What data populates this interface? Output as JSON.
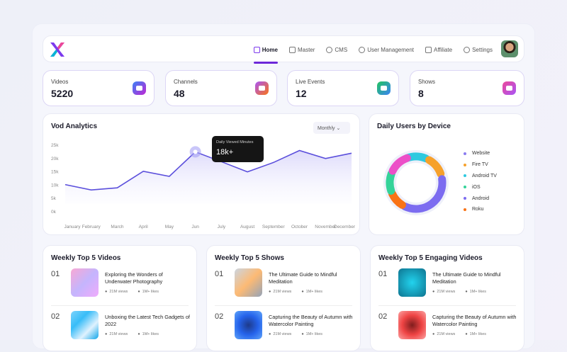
{
  "nav": {
    "items": [
      {
        "label": "Home",
        "icon": "home-icon",
        "active": true
      },
      {
        "label": "Master",
        "icon": "folder-icon"
      },
      {
        "label": "CMS",
        "icon": "cms-icon"
      },
      {
        "label": "User Management",
        "icon": "user-icon"
      },
      {
        "label": "Affiliate",
        "icon": "affiliate-icon"
      },
      {
        "label": "Settings",
        "icon": "gear-icon"
      }
    ]
  },
  "stats": [
    {
      "label": "Videos",
      "value": "5220",
      "icon": "video-icon"
    },
    {
      "label": "Channels",
      "value": "48",
      "icon": "tv-icon"
    },
    {
      "label": "Live Events",
      "value": "12",
      "icon": "live-icon"
    },
    {
      "label": "Shows",
      "value": "8",
      "icon": "show-icon"
    }
  ],
  "vod": {
    "title": "Vod Analytics",
    "period": "Monthly",
    "tooltip_label": "Daily Viewed Minutes",
    "tooltip_value": "18k+"
  },
  "chart_data": {
    "type": "area",
    "x": [
      "January",
      "February",
      "March",
      "April",
      "May",
      "Jun",
      "July",
      "August",
      "September",
      "October",
      "November",
      "December"
    ],
    "values": [
      10.2,
      8.2,
      9,
      15.2,
      13.3,
      22.5,
      18.8,
      15,
      18.5,
      23,
      20,
      22
    ],
    "yticks": [
      "0k",
      "5k",
      "10k",
      "15k",
      "20k",
      "25k"
    ],
    "ylim": [
      0,
      25
    ],
    "color": "#5b4fdc"
  },
  "devices": {
    "title": "Daily Users by Device",
    "items": [
      {
        "label": "Website",
        "color": "#8b7cf0"
      },
      {
        "label": "Fire TV",
        "color": "#f6a12c"
      },
      {
        "label": "Android TV",
        "color": "#2ec9e0"
      },
      {
        "label": "iOS",
        "color": "#34d399"
      },
      {
        "label": "Android",
        "color": "#7c6cf0"
      },
      {
        "label": "Roku",
        "color": "#f97316"
      }
    ]
  },
  "lists": [
    {
      "title": "Weekly Top 5 Videos",
      "items": [
        {
          "n": "01",
          "title": "Exploring the Wonders of Underwater Photography",
          "views": "21M views",
          "likes": "1M+ likes"
        },
        {
          "n": "02",
          "title": "Unboxing the Latest Tech Gadgets of 2022",
          "views": "21M views",
          "likes": "1M+ likes"
        }
      ]
    },
    {
      "title": "Weekly Top 5 Shows",
      "items": [
        {
          "n": "01",
          "title": "The Ultimate Guide to Mindful Meditation",
          "views": "21M views",
          "likes": "1M+ likes"
        },
        {
          "n": "02",
          "title": "Capturing the Beauty of Autumn with Watercolor Painting",
          "views": "21M views",
          "likes": "1M+ likes"
        }
      ]
    },
    {
      "title": "Weekly Top 5 Engaging Videos",
      "items": [
        {
          "n": "01",
          "title": "The Ultimate Guide to Mindful Meditation",
          "views": "21M views",
          "likes": "1M+ likes"
        },
        {
          "n": "02",
          "title": "Capturing the Beauty of Autumn with Watercolor Painting",
          "views": "21M views",
          "likes": "1M+ likes"
        }
      ]
    }
  ]
}
